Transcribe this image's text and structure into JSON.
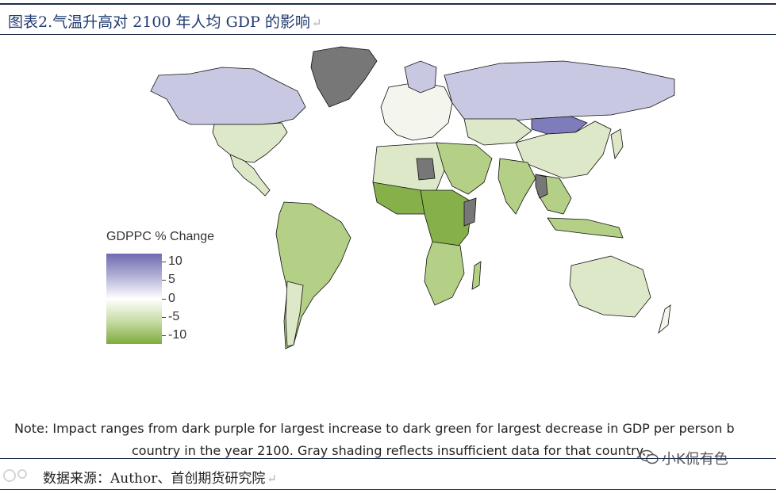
{
  "header": {
    "title": "图表2.气温升高对 2100 年人均 GDP 的影响",
    "return_mark": "↵"
  },
  "legend": {
    "title": "GDPPC % Change",
    "labels": [
      "10",
      "5",
      "0",
      "-5",
      "-10"
    ],
    "colors": {
      "max": "#6e6bb0",
      "mid": "#ffffff",
      "min": "#7fab3e"
    }
  },
  "map": {
    "fill_colors": {
      "purple_dark": "#7e7cbb",
      "purple_light": "#c9c8e3",
      "neutral": "#f4f6ee",
      "green_light": "#dce8c7",
      "green_mid": "#b4cf86",
      "green_dark": "#86b04a",
      "no_data": "#777777",
      "border": "#111111"
    }
  },
  "note": {
    "line1": "Note: Impact ranges from dark purple for largest increase to dark green for largest decrease in GDP per person b",
    "line2": "country in the year 2100. Gray shading reflects insufficient data for that country."
  },
  "source": {
    "text": "数据来源：Author、首创期货研究院",
    "return_mark": "↵"
  },
  "watermark": {
    "icon": "wechat-icon",
    "text": "小K侃有色"
  }
}
